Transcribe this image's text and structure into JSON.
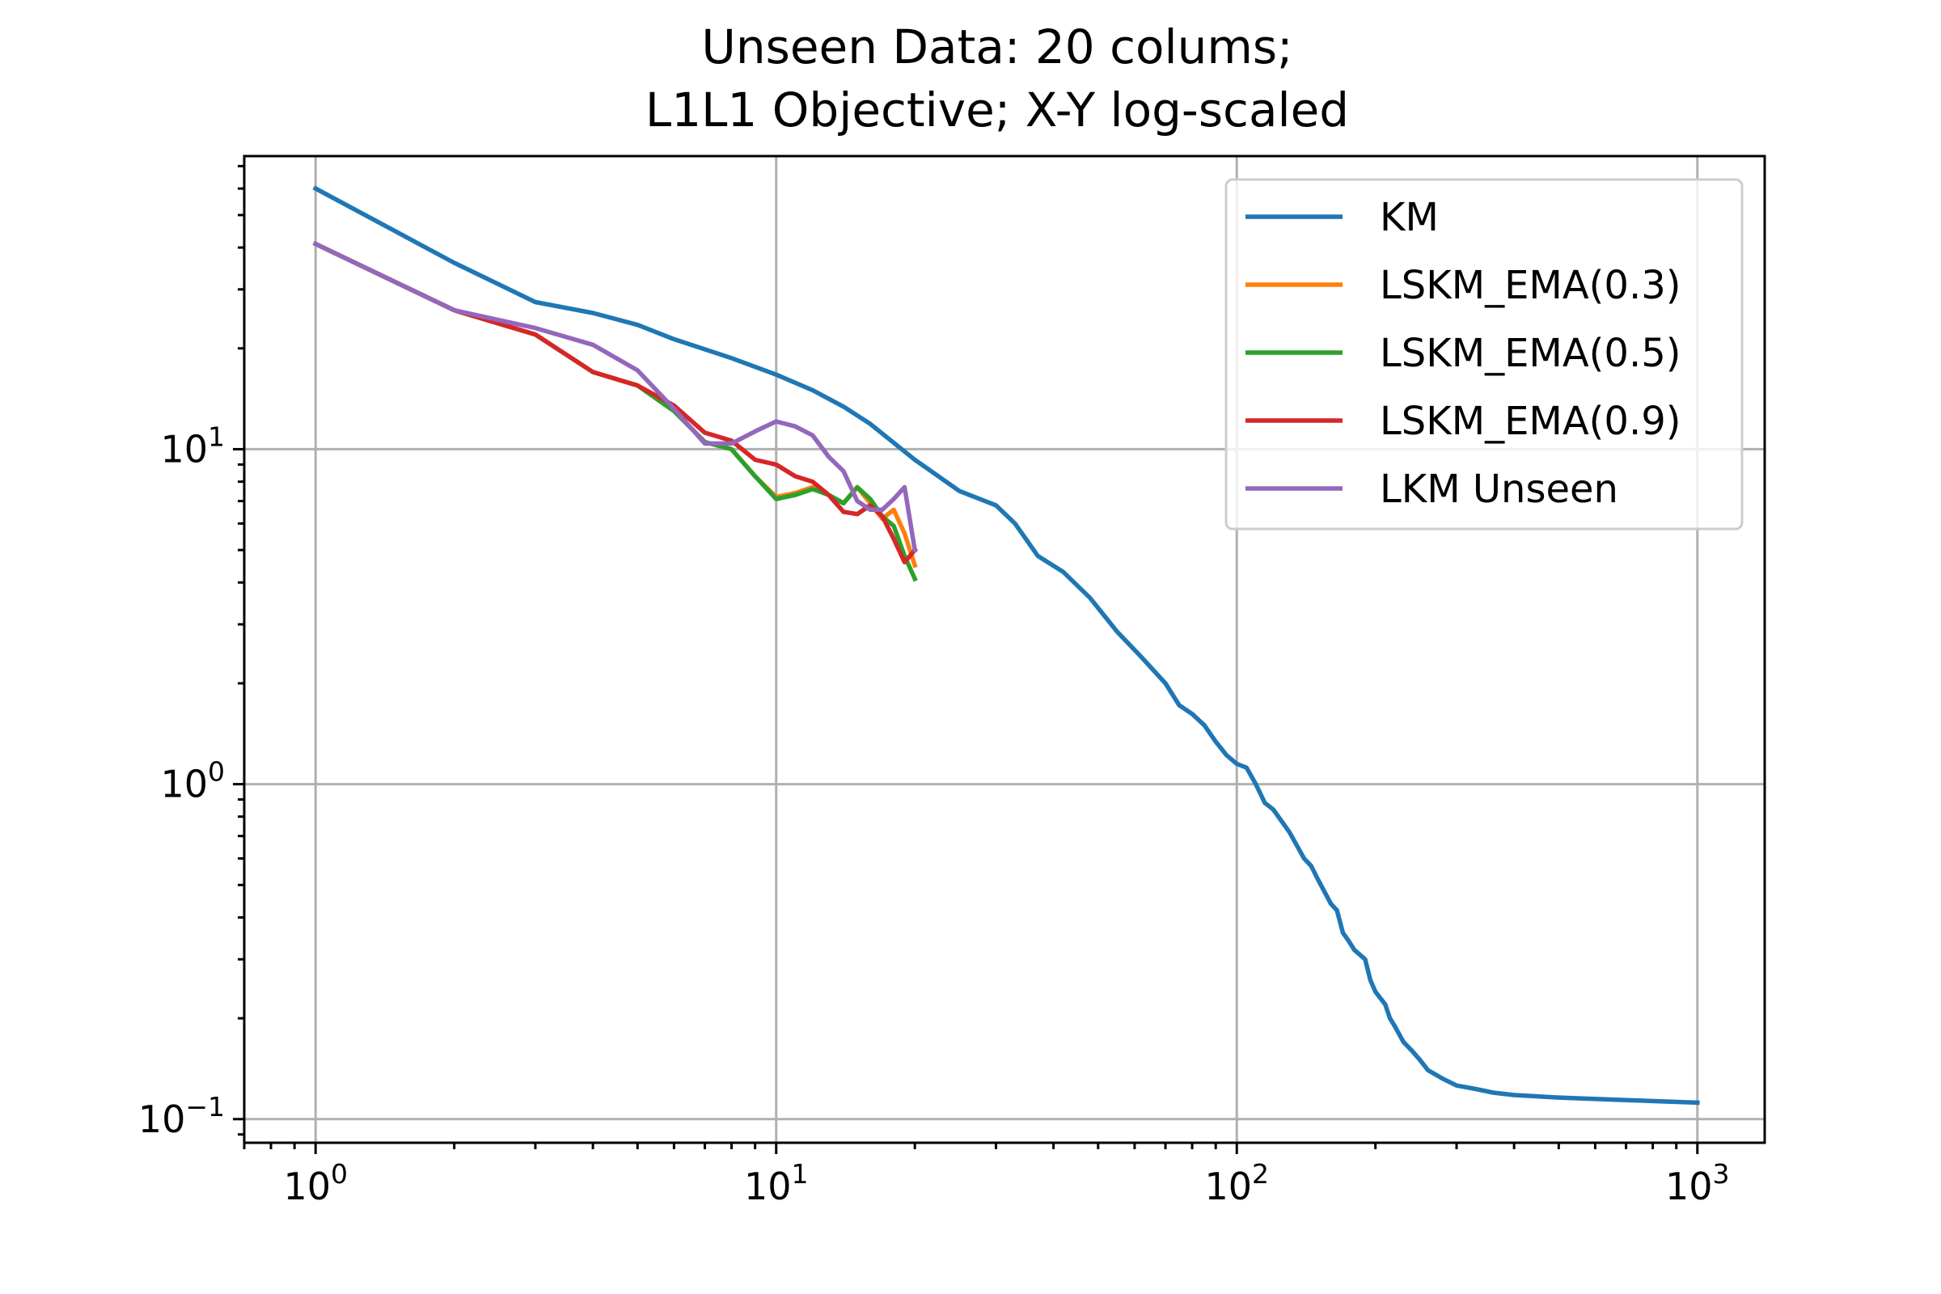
{
  "chart_data": {
    "type": "line",
    "title_lines": [
      "Unseen Data: 20 colums;",
      "L1L1 Objective; X-Y log-scaled"
    ],
    "xscale": "log",
    "yscale": "log",
    "xlim": [
      0.7,
      1400
    ],
    "ylim": [
      0.085,
      75
    ],
    "grid": true,
    "legend_position": "upper-right",
    "x_ticks": [
      {
        "value": 1,
        "base": "10",
        "exp": "0"
      },
      {
        "value": 10,
        "base": "10",
        "exp": "1"
      },
      {
        "value": 100,
        "base": "10",
        "exp": "2"
      },
      {
        "value": 1000,
        "base": "10",
        "exp": "3"
      }
    ],
    "y_ticks": [
      {
        "value": 0.1,
        "base": "10",
        "exp": "−1"
      },
      {
        "value": 1,
        "base": "10",
        "exp": "0"
      },
      {
        "value": 10,
        "base": "10",
        "exp": "1"
      }
    ],
    "series": [
      {
        "name": "KM",
        "color": "#1f77b4",
        "x": [
          1,
          2,
          3,
          4,
          5,
          6,
          8,
          10,
          12,
          14,
          16,
          20,
          25,
          30,
          33,
          37,
          42,
          48,
          55,
          62,
          70,
          75,
          80,
          85,
          90,
          95,
          100,
          105,
          110,
          115,
          120,
          130,
          140,
          145,
          150,
          160,
          165,
          170,
          175,
          180,
          190,
          195,
          200,
          210,
          215,
          220,
          230,
          240,
          250,
          260,
          280,
          300,
          330,
          360,
          400,
          500,
          700,
          1000
        ],
        "y": [
          60,
          36,
          27.5,
          25.5,
          23.5,
          21.3,
          18.7,
          16.7,
          15,
          13.4,
          11.9,
          9.3,
          7.5,
          6.8,
          6.0,
          4.8,
          4.3,
          3.6,
          2.85,
          2.4,
          2.0,
          1.72,
          1.62,
          1.5,
          1.34,
          1.22,
          1.15,
          1.12,
          1.0,
          0.88,
          0.84,
          0.72,
          0.6,
          0.57,
          0.52,
          0.44,
          0.42,
          0.36,
          0.34,
          0.32,
          0.3,
          0.26,
          0.24,
          0.22,
          0.2,
          0.19,
          0.17,
          0.16,
          0.15,
          0.14,
          0.132,
          0.126,
          0.123,
          0.12,
          0.118,
          0.116,
          0.114,
          0.112
        ]
      },
      {
        "name": "LSKM_EMA(0.3)",
        "color": "#ff7f0e",
        "x": [
          1,
          2,
          3,
          4,
          5,
          6,
          7,
          8,
          9,
          10,
          11,
          12,
          13,
          14,
          15,
          16,
          17,
          18,
          19,
          20
        ],
        "y": [
          41,
          26,
          22,
          17,
          15.5,
          13,
          10.5,
          10,
          8.3,
          7.2,
          7.4,
          7.7,
          7.3,
          6.9,
          7.7,
          6.9,
          6.2,
          6.6,
          5.6,
          4.5
        ]
      },
      {
        "name": "LSKM_EMA(0.5)",
        "color": "#2ca02c",
        "x": [
          1,
          2,
          3,
          4,
          5,
          6,
          7,
          8,
          9,
          10,
          11,
          12,
          13,
          14,
          15,
          16,
          17,
          18,
          19,
          20
        ],
        "y": [
          41,
          26,
          22,
          17,
          15.5,
          13,
          10.5,
          10,
          8.3,
          7.1,
          7.3,
          7.6,
          7.3,
          6.9,
          7.7,
          7.1,
          6.3,
          5.9,
          4.8,
          4.1
        ]
      },
      {
        "name": "LSKM_EMA(0.9)",
        "color": "#d62728",
        "x": [
          1,
          2,
          3,
          4,
          5,
          6,
          7,
          8,
          9,
          10,
          11,
          12,
          13,
          14,
          15,
          16,
          17,
          18,
          19,
          20
        ],
        "y": [
          41,
          26,
          22,
          17,
          15.5,
          13.5,
          11.2,
          10.6,
          9.3,
          9.0,
          8.3,
          8.0,
          7.3,
          6.5,
          6.4,
          6.8,
          6.3,
          5.4,
          4.6,
          5.0
        ]
      },
      {
        "name": "LKM Unseen",
        "color": "#9467bd",
        "x": [
          1,
          2,
          3,
          4,
          5,
          6,
          7,
          8,
          9,
          10,
          11,
          12,
          13,
          14,
          15,
          16,
          17,
          18,
          19,
          20
        ],
        "y": [
          41,
          26,
          23,
          20.5,
          17.2,
          13.2,
          10.4,
          10.4,
          11.3,
          12.1,
          11.7,
          11.0,
          9.5,
          8.6,
          7.0,
          6.6,
          6.6,
          7.1,
          7.7,
          5.0
        ]
      }
    ]
  }
}
